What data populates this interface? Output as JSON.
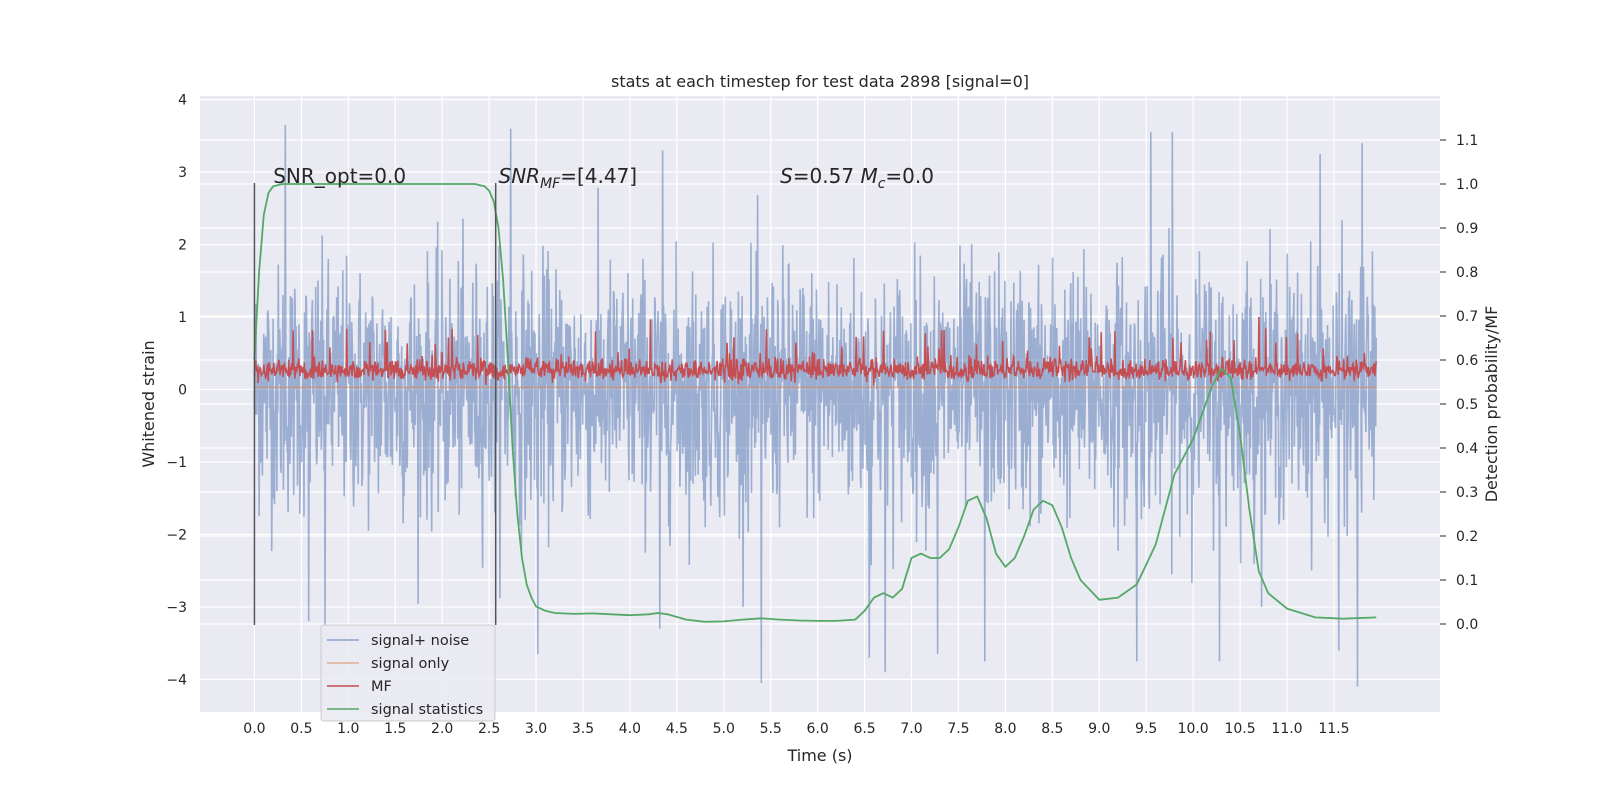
{
  "chart_data": {
    "type": "line",
    "title": "stats at each timestep for test data 2898 [signal=0]",
    "xlabel": "Time (s)",
    "ylabel": "Whitened strain",
    "ylabel_right": "Detection probability/MF",
    "xlim": [
      -0.58,
      12.63
    ],
    "ylim": [
      -4.45,
      4.05
    ],
    "ylim_right": [
      -0.2,
      1.2
    ],
    "xticks": [
      "0.0",
      "0.5",
      "1.0",
      "1.5",
      "2.0",
      "2.5",
      "3.0",
      "3.5",
      "4.0",
      "4.5",
      "5.0",
      "5.5",
      "6.0",
      "6.5",
      "7.0",
      "7.5",
      "8.0",
      "8.5",
      "9.0",
      "9.5",
      "10.0",
      "10.5",
      "11.0",
      "11.5"
    ],
    "yticks": [
      "−4",
      "−3",
      "−2",
      "−1",
      "0",
      "1",
      "2",
      "3",
      "4"
    ],
    "yticks_right": [
      "0.0",
      "0.1",
      "0.2",
      "0.3",
      "0.4",
      "0.5",
      "0.6",
      "0.7",
      "0.8",
      "0.9",
      "1.0",
      "1.1"
    ],
    "grid": true,
    "legend_position": "lower-left",
    "annotations": [
      {
        "text_parts": [
          {
            "t": "SNR_opt=0.0"
          }
        ],
        "x": 0.2,
        "y": 2.85
      },
      {
        "text_parts": [
          {
            "t": "SNR",
            "i": true
          },
          {
            "t": "MF",
            "i": true,
            "sub": true
          },
          {
            "t": "=[4.47]"
          }
        ],
        "x": 2.6,
        "y": 2.85
      },
      {
        "text_parts": [
          {
            "t": "S",
            "i": true
          },
          {
            "t": "=0.57   "
          },
          {
            "t": "M",
            "i": true
          },
          {
            "t": "c",
            "i": true,
            "sub": true
          },
          {
            "t": "=0.0"
          }
        ],
        "x": 5.6,
        "y": 2.85
      }
    ],
    "vlines": [
      {
        "x": 0.0,
        "y0": -3.25,
        "y1": 2.85
      },
      {
        "x": 2.57,
        "y0": -3.25,
        "y1": 2.85
      }
    ],
    "series": [
      {
        "name": "signal+ noise",
        "axis": "left",
        "color": "#4c72b0",
        "kind": "noise",
        "x_range": [
          0.0,
          11.95
        ],
        "std": 0.85,
        "extremes": [
          {
            "x": 0.33,
            "y": 3.65
          },
          {
            "x": 0.58,
            "y": -3.2
          },
          {
            "x": 0.75,
            "y": -3.25
          },
          {
            "x": 2.73,
            "y": 3.6
          },
          {
            "x": 3.02,
            "y": -3.65
          },
          {
            "x": 4.35,
            "y": 3.3
          },
          {
            "x": 4.32,
            "y": -3.3
          },
          {
            "x": 5.4,
            "y": -4.05
          },
          {
            "x": 6.55,
            "y": -3.7
          },
          {
            "x": 6.72,
            "y": -3.9
          },
          {
            "x": 7.28,
            "y": -3.65
          },
          {
            "x": 7.78,
            "y": -3.75
          },
          {
            "x": 9.55,
            "y": 3.55
          },
          {
            "x": 9.78,
            "y": 3.55
          },
          {
            "x": 9.4,
            "y": -3.75
          },
          {
            "x": 11.35,
            "y": 3.25
          },
          {
            "x": 11.55,
            "y": -3.6
          },
          {
            "x": 11.75,
            "y": -4.1
          },
          {
            "x": 11.8,
            "y": 3.4
          },
          {
            "x": 10.28,
            "y": -3.75
          }
        ]
      },
      {
        "name": "signal only",
        "axis": "left",
        "color": "#dd8452",
        "kind": "flat",
        "x_range": [
          0.0,
          11.95
        ],
        "value": 0.03
      },
      {
        "name": "MF",
        "axis": "left",
        "color": "#c44e52",
        "kind": "mf",
        "x_range": [
          0.0,
          11.95
        ],
        "baseline": 0.26,
        "std": 0.09,
        "peaks": [
          {
            "x": 4.22,
            "y": 0.97
          },
          {
            "x": 10.7,
            "y": 1.0
          },
          {
            "x": 0.62,
            "y": 0.82
          },
          {
            "x": 7.35,
            "y": 0.82
          }
        ]
      },
      {
        "name": "signal statistics",
        "axis": "right",
        "color": "#55a868",
        "kind": "line",
        "x": [
          0.0,
          0.05,
          0.1,
          0.15,
          0.2,
          0.3,
          0.5,
          1.0,
          1.5,
          2.0,
          2.2,
          2.35,
          2.45,
          2.5,
          2.55,
          2.6,
          2.65,
          2.7,
          2.75,
          2.8,
          2.85,
          2.9,
          2.95,
          3.0,
          3.1,
          3.2,
          3.4,
          3.6,
          3.8,
          4.0,
          4.2,
          4.3,
          4.4,
          4.6,
          4.8,
          5.0,
          5.2,
          5.4,
          5.6,
          5.8,
          6.0,
          6.2,
          6.4,
          6.5,
          6.6,
          6.7,
          6.8,
          6.9,
          7.0,
          7.1,
          7.2,
          7.3,
          7.4,
          7.5,
          7.6,
          7.7,
          7.8,
          7.9,
          8.0,
          8.1,
          8.2,
          8.3,
          8.4,
          8.5,
          8.6,
          8.7,
          8.8,
          9.0,
          9.2,
          9.4,
          9.6,
          9.8,
          10.0,
          10.1,
          10.2,
          10.3,
          10.4,
          10.5,
          10.6,
          10.7,
          10.8,
          11.0,
          11.3,
          11.6,
          11.95
        ],
        "y": [
          0.6,
          0.8,
          0.93,
          0.98,
          0.995,
          1.0,
          1.0,
          1.0,
          1.0,
          1.0,
          1.0,
          1.0,
          0.995,
          0.985,
          0.96,
          0.9,
          0.78,
          0.6,
          0.4,
          0.25,
          0.15,
          0.09,
          0.06,
          0.04,
          0.03,
          0.025,
          0.023,
          0.024,
          0.022,
          0.02,
          0.022,
          0.025,
          0.022,
          0.01,
          0.005,
          0.006,
          0.01,
          0.013,
          0.01,
          0.008,
          0.007,
          0.007,
          0.01,
          0.03,
          0.06,
          0.07,
          0.06,
          0.08,
          0.15,
          0.16,
          0.15,
          0.15,
          0.17,
          0.22,
          0.28,
          0.29,
          0.24,
          0.16,
          0.13,
          0.15,
          0.2,
          0.26,
          0.28,
          0.27,
          0.22,
          0.15,
          0.1,
          0.055,
          0.06,
          0.09,
          0.18,
          0.34,
          0.42,
          0.48,
          0.54,
          0.58,
          0.56,
          0.43,
          0.26,
          0.12,
          0.07,
          0.035,
          0.015,
          0.012,
          0.015
        ]
      }
    ]
  }
}
